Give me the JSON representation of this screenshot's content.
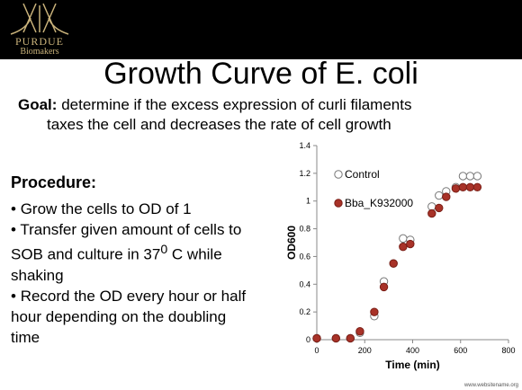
{
  "logo": {
    "wordmark": "PURDUE",
    "sub": "Biomakers"
  },
  "title": "Growth Curve of E. coli",
  "goal": {
    "label": "Goal:",
    "line1": "determine if the excess expression of curli filaments",
    "line2": "taxes the cell and decreases the rate of cell growth"
  },
  "procedure": {
    "title": "Procedure:",
    "items": [
      {
        "b": "•",
        "text": "Grow the cells to OD of 1"
      },
      {
        "b": "•",
        "text": "Transfer given amount of cells to SOB and culture in 37",
        "sup": "0",
        "tail": " C while shaking"
      },
      {
        "b": "•",
        "text": "Record the OD every hour or half hour depending on the doubling time"
      }
    ]
  },
  "colors": {
    "background": "#ffffff",
    "topbar": "#000000",
    "logo_gold": "#c9b27a",
    "series2": "#a83228"
  },
  "watermark": "www.websitename.org",
  "chart_data": {
    "type": "scatter",
    "xlabel": "Time (min)",
    "ylabel": "OD600",
    "xlim": [
      0,
      800
    ],
    "ylim": [
      0,
      1.4
    ],
    "xticks": [
      0,
      200,
      400,
      600,
      800
    ],
    "yticks": [
      0,
      0.2,
      0.4,
      0.6,
      0.8,
      1,
      1.2,
      1.4
    ],
    "xtick_labels": [
      "0",
      "200",
      "400",
      "600",
      "800"
    ],
    "ytick_labels": [
      "0",
      "0.2",
      "0.4",
      "0.6",
      "0.8",
      "1",
      "1.2",
      "1.4"
    ],
    "grid": false,
    "legend": "top-left",
    "series": [
      {
        "name": "Control",
        "marker": "open-circle",
        "x": [
          0,
          80,
          140,
          180,
          240,
          280,
          320,
          360,
          390,
          480,
          510,
          540,
          580,
          610,
          640,
          670
        ],
        "y": [
          0.01,
          0.01,
          0.01,
          0.05,
          0.17,
          0.42,
          0.55,
          0.73,
          0.72,
          0.96,
          1.04,
          1.07,
          1.1,
          1.18,
          1.18,
          1.18
        ]
      },
      {
        "name": "Bba_K932000",
        "marker": "filled-circle",
        "x": [
          0,
          80,
          140,
          180,
          240,
          280,
          320,
          360,
          390,
          480,
          510,
          540,
          580,
          610,
          640,
          670
        ],
        "y": [
          0.01,
          0.01,
          0.01,
          0.06,
          0.2,
          0.38,
          0.55,
          0.67,
          0.69,
          0.91,
          0.95,
          1.03,
          1.09,
          1.1,
          1.1,
          1.1
        ]
      }
    ]
  }
}
